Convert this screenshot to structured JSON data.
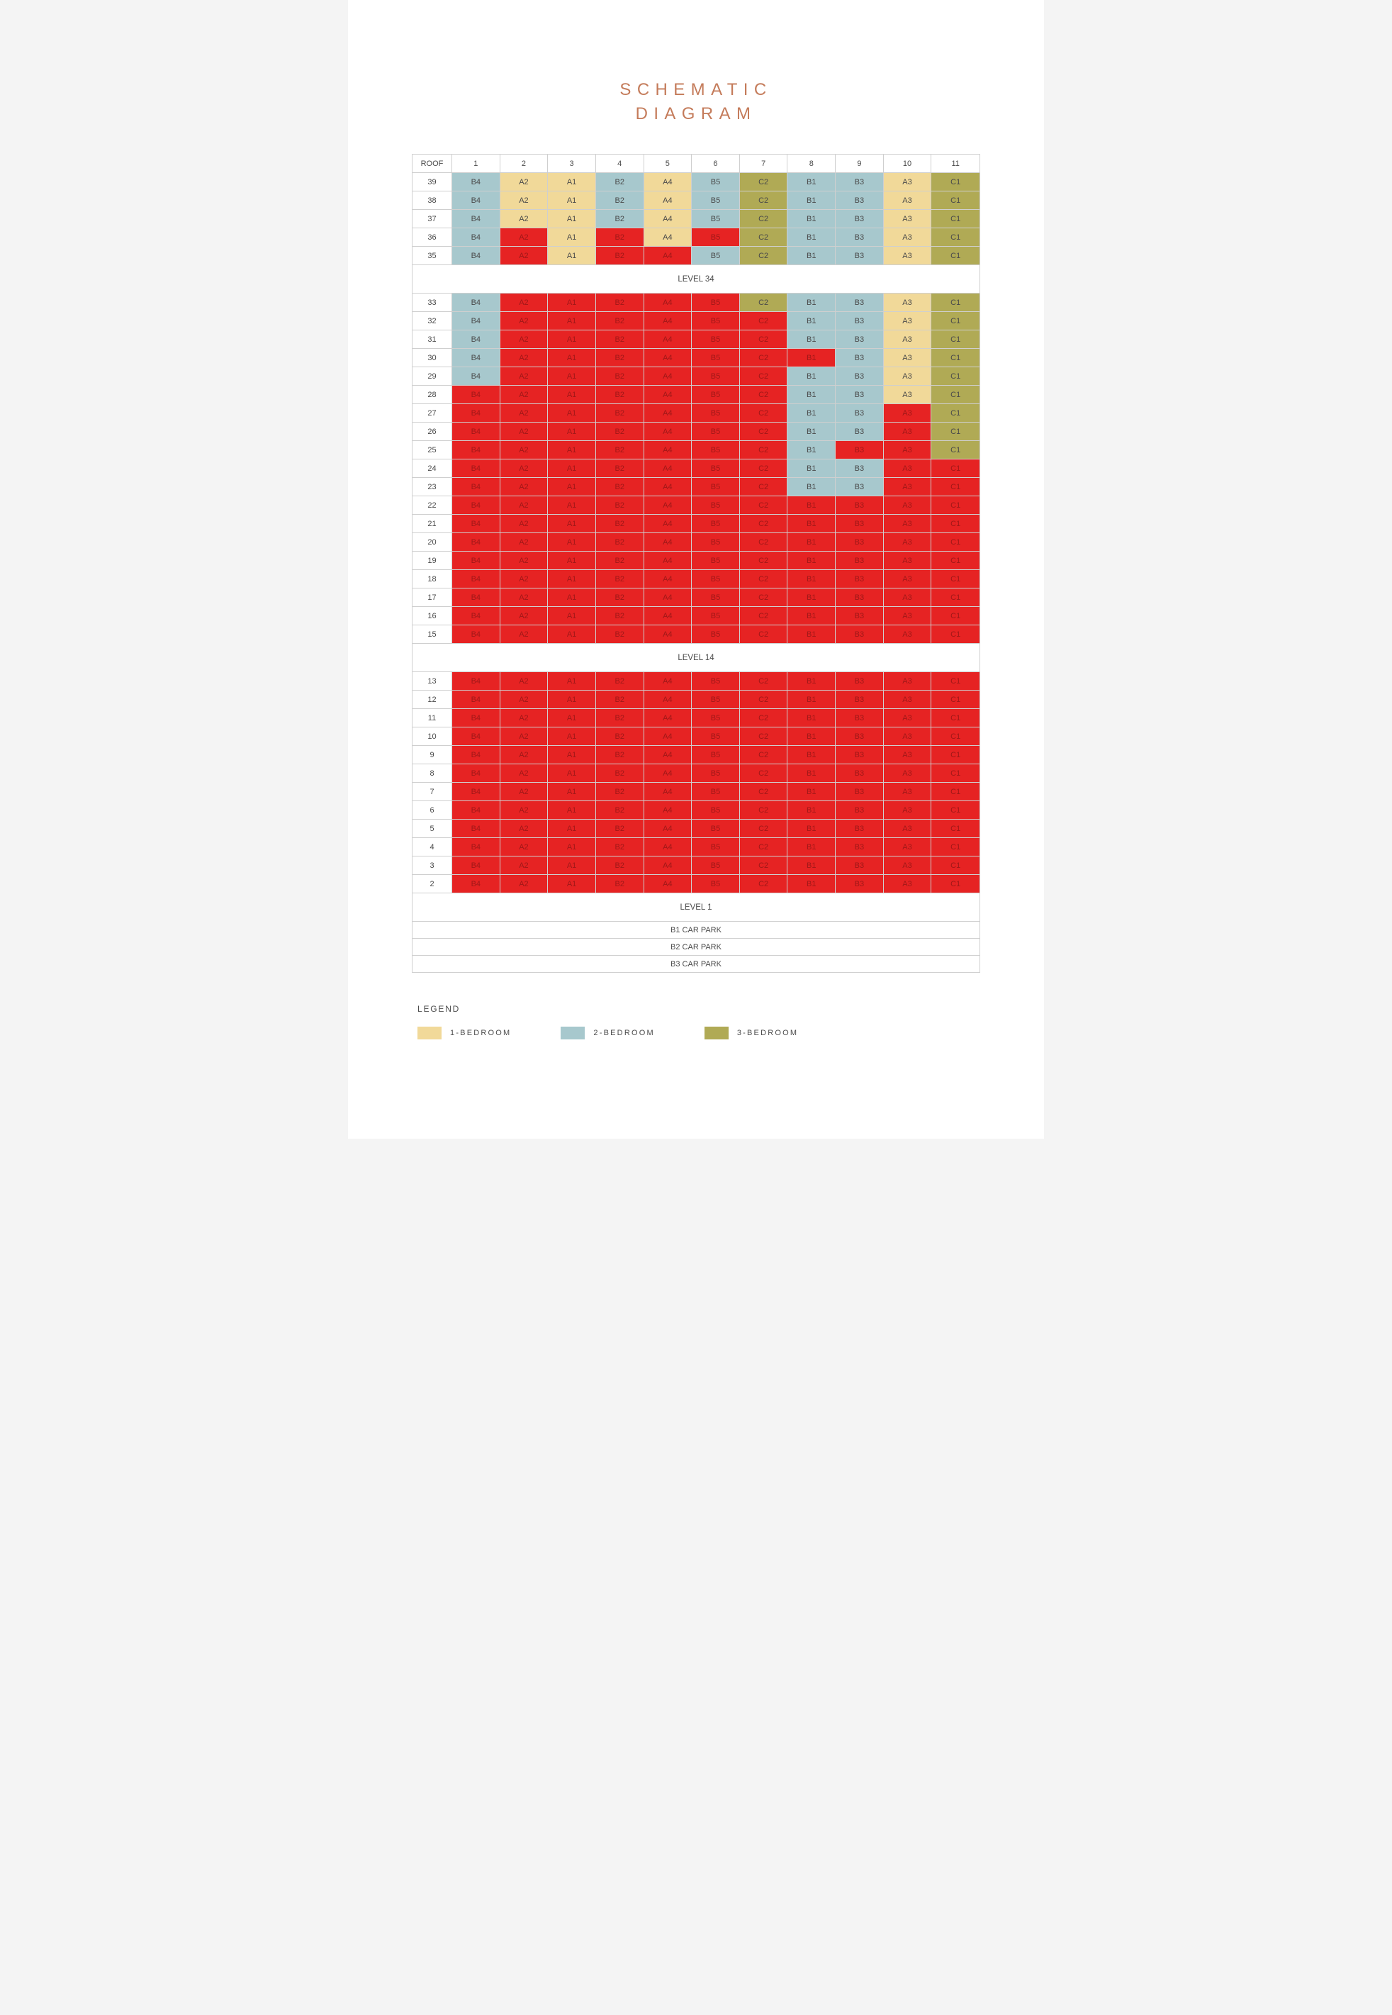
{
  "title_line1": "SCHEMATIC",
  "title_line2": "DIAGRAM",
  "colors": {
    "sold": "#e62323",
    "sold_text": "#a01818",
    "bed1": "#f1d999",
    "bed2": "#a7c8cd",
    "bed3": "#b0aa55",
    "ink": "#4a4a4a",
    "grid": "#cfcfcf",
    "white": "#ffffff"
  },
  "header": [
    "ROOF",
    "1",
    "2",
    "3",
    "4",
    "5",
    "6",
    "7",
    "8",
    "9",
    "10",
    "11"
  ],
  "unit_types": [
    "B4",
    "A2",
    "A1",
    "B2",
    "A4",
    "B5",
    "C2",
    "B1",
    "B3",
    "A3",
    "C1"
  ],
  "unit_bed": [
    2,
    1,
    1,
    2,
    1,
    2,
    3,
    2,
    2,
    1,
    3
  ],
  "sections": [
    {
      "levels": [
        {
          "label": "39",
          "sold": [
            0,
            0,
            0,
            0,
            0,
            0,
            0,
            0,
            0,
            0,
            0
          ]
        },
        {
          "label": "38",
          "sold": [
            0,
            0,
            0,
            0,
            0,
            0,
            0,
            0,
            0,
            0,
            0
          ]
        },
        {
          "label": "37",
          "sold": [
            0,
            0,
            0,
            0,
            0,
            0,
            0,
            0,
            0,
            0,
            0
          ]
        },
        {
          "label": "36",
          "sold": [
            0,
            1,
            0,
            1,
            0,
            1,
            0,
            0,
            0,
            0,
            0
          ]
        },
        {
          "label": "35",
          "sold": [
            0,
            1,
            0,
            1,
            1,
            0,
            0,
            0,
            0,
            0,
            0
          ]
        }
      ],
      "bar": "LEVEL 34"
    },
    {
      "levels": [
        {
          "label": "33",
          "sold": [
            0,
            1,
            1,
            1,
            1,
            1,
            0,
            0,
            0,
            0,
            0
          ]
        },
        {
          "label": "32",
          "sold": [
            0,
            1,
            1,
            1,
            1,
            1,
            1,
            0,
            0,
            0,
            0
          ]
        },
        {
          "label": "31",
          "sold": [
            0,
            1,
            1,
            1,
            1,
            1,
            1,
            0,
            0,
            0,
            0
          ]
        },
        {
          "label": "30",
          "sold": [
            0,
            1,
            1,
            1,
            1,
            1,
            1,
            1,
            0,
            0,
            0
          ]
        },
        {
          "label": "29",
          "sold": [
            0,
            1,
            1,
            1,
            1,
            1,
            1,
            0,
            0,
            0,
            0
          ]
        },
        {
          "label": "28",
          "sold": [
            1,
            1,
            1,
            1,
            1,
            1,
            1,
            0,
            0,
            0,
            0
          ]
        },
        {
          "label": "27",
          "sold": [
            1,
            1,
            1,
            1,
            1,
            1,
            1,
            0,
            0,
            1,
            0
          ]
        },
        {
          "label": "26",
          "sold": [
            1,
            1,
            1,
            1,
            1,
            1,
            1,
            0,
            0,
            1,
            0
          ]
        },
        {
          "label": "25",
          "sold": [
            1,
            1,
            1,
            1,
            1,
            1,
            1,
            0,
            1,
            1,
            0
          ]
        },
        {
          "label": "24",
          "sold": [
            1,
            1,
            1,
            1,
            1,
            1,
            1,
            0,
            0,
            1,
            1
          ]
        },
        {
          "label": "23",
          "sold": [
            1,
            1,
            1,
            1,
            1,
            1,
            1,
            0,
            0,
            1,
            1
          ]
        },
        {
          "label": "22",
          "sold": [
            1,
            1,
            1,
            1,
            1,
            1,
            1,
            1,
            1,
            1,
            1
          ]
        },
        {
          "label": "21",
          "sold": [
            1,
            1,
            1,
            1,
            1,
            1,
            1,
            1,
            1,
            1,
            1
          ]
        },
        {
          "label": "20",
          "sold": [
            1,
            1,
            1,
            1,
            1,
            1,
            1,
            1,
            1,
            1,
            1
          ]
        },
        {
          "label": "19",
          "sold": [
            1,
            1,
            1,
            1,
            1,
            1,
            1,
            1,
            1,
            1,
            1
          ]
        },
        {
          "label": "18",
          "sold": [
            1,
            1,
            1,
            1,
            1,
            1,
            1,
            1,
            1,
            1,
            1
          ]
        },
        {
          "label": "17",
          "sold": [
            1,
            1,
            1,
            1,
            1,
            1,
            1,
            1,
            1,
            1,
            1
          ]
        },
        {
          "label": "16",
          "sold": [
            1,
            1,
            1,
            1,
            1,
            1,
            1,
            1,
            1,
            1,
            1
          ]
        },
        {
          "label": "15",
          "sold": [
            1,
            1,
            1,
            1,
            1,
            1,
            1,
            1,
            1,
            1,
            1
          ]
        }
      ],
      "bar": "LEVEL 14"
    },
    {
      "levels": [
        {
          "label": "13",
          "sold": [
            1,
            1,
            1,
            1,
            1,
            1,
            1,
            1,
            1,
            1,
            1
          ]
        },
        {
          "label": "12",
          "sold": [
            1,
            1,
            1,
            1,
            1,
            1,
            1,
            1,
            1,
            1,
            1
          ]
        },
        {
          "label": "11",
          "sold": [
            1,
            1,
            1,
            1,
            1,
            1,
            1,
            1,
            1,
            1,
            1
          ]
        },
        {
          "label": "10",
          "sold": [
            1,
            1,
            1,
            1,
            1,
            1,
            1,
            1,
            1,
            1,
            1
          ]
        },
        {
          "label": "9",
          "sold": [
            1,
            1,
            1,
            1,
            1,
            1,
            1,
            1,
            1,
            1,
            1
          ]
        },
        {
          "label": "8",
          "sold": [
            1,
            1,
            1,
            1,
            1,
            1,
            1,
            1,
            1,
            1,
            1
          ]
        },
        {
          "label": "7",
          "sold": [
            1,
            1,
            1,
            1,
            1,
            1,
            1,
            1,
            1,
            1,
            1
          ]
        },
        {
          "label": "6",
          "sold": [
            1,
            1,
            1,
            1,
            1,
            1,
            1,
            1,
            1,
            1,
            1
          ]
        },
        {
          "label": "5",
          "sold": [
            1,
            1,
            1,
            1,
            1,
            1,
            1,
            1,
            1,
            1,
            1
          ]
        },
        {
          "label": "4",
          "sold": [
            1,
            1,
            1,
            1,
            1,
            1,
            1,
            1,
            1,
            1,
            1
          ]
        },
        {
          "label": "3",
          "sold": [
            1,
            1,
            1,
            1,
            1,
            1,
            1,
            1,
            1,
            1,
            1
          ]
        },
        {
          "label": "2",
          "sold": [
            1,
            1,
            1,
            1,
            1,
            1,
            1,
            1,
            1,
            1,
            1
          ]
        }
      ],
      "bar": "LEVEL 1"
    }
  ],
  "footer_rows": [
    "B1 CAR PARK",
    "B2 CAR PARK",
    "B3 CAR PARK"
  ],
  "legend": {
    "title": "LEGEND",
    "items": [
      {
        "label": "1-BEDROOM",
        "color_key": "bed1"
      },
      {
        "label": "2-BEDROOM",
        "color_key": "bed2"
      },
      {
        "label": "3-BEDROOM",
        "color_key": "bed3"
      }
    ]
  }
}
